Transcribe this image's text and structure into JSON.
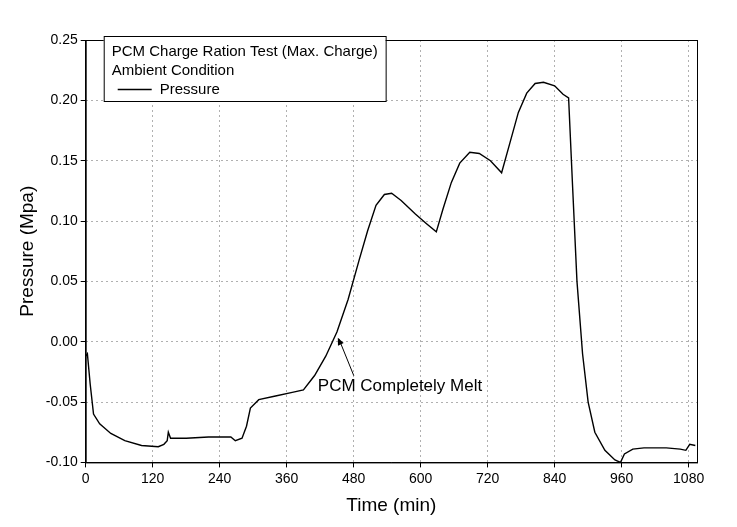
{
  "chart_data": {
    "type": "line",
    "title": [
      "PCM Charge Ration Test (Max. Charge)",
      "Ambient Condition"
    ],
    "x_label": "Time (min)",
    "y_label": "Pressure (Mpa)",
    "x": [
      0,
      3,
      8,
      14,
      25,
      45,
      70,
      100,
      130,
      140,
      146,
      148,
      152,
      180,
      220,
      260,
      268,
      280,
      288,
      295,
      310,
      340,
      370,
      390,
      410,
      430,
      450,
      470,
      490,
      505,
      520,
      535,
      548,
      565,
      590,
      610,
      628,
      640,
      655,
      670,
      688,
      705,
      725,
      745,
      760,
      775,
      790,
      805,
      820,
      840,
      855,
      865,
      872,
      880,
      890,
      900,
      912,
      930,
      948,
      958,
      965,
      980,
      1000,
      1040,
      1065,
      1075,
      1082,
      1092
    ],
    "series": [
      {
        "name": "Pressure",
        "color": "#000000",
        "line_style": "solid",
        "marker": "none",
        "values": [
          -0.012,
          -0.01,
          -0.035,
          -0.06,
          -0.068,
          -0.076,
          -0.082,
          -0.086,
          -0.087,
          -0.085,
          -0.082,
          -0.075,
          -0.08,
          -0.08,
          -0.079,
          -0.079,
          -0.082,
          -0.08,
          -0.07,
          -0.055,
          -0.048,
          -0.045,
          -0.042,
          -0.04,
          -0.028,
          -0.012,
          0.008,
          0.035,
          0.068,
          0.092,
          0.113,
          0.122,
          0.123,
          0.117,
          0.106,
          0.098,
          0.091,
          0.11,
          0.132,
          0.148,
          0.157,
          0.156,
          0.15,
          0.14,
          0.165,
          0.19,
          0.206,
          0.214,
          0.215,
          0.212,
          0.205,
          0.202,
          0.13,
          0.05,
          -0.01,
          -0.05,
          -0.075,
          -0.09,
          -0.098,
          -0.1,
          -0.093,
          -0.089,
          -0.088,
          -0.088,
          -0.089,
          -0.09,
          -0.085,
          -0.086
        ]
      }
    ],
    "xlim": [
      0,
      1095
    ],
    "xticks": [
      0,
      120,
      240,
      360,
      480,
      600,
      720,
      840,
      960,
      1080
    ],
    "ylim": [
      -0.1,
      0.25
    ],
    "yticks": [
      {
        "value": -0.1,
        "label": "-0.10"
      },
      -0.05,
      {
        "value": 0,
        "label": "0.00"
      },
      0.05,
      {
        "value": 0.1,
        "label": "0.10"
      },
      0.15,
      {
        "value": 0.2,
        "label": "0.20"
      },
      0.25
    ],
    "grid": true,
    "legend": "upper left",
    "annotations": [
      {
        "text": "PCM Completely Melt",
        "x": 448,
        "y": 0.005
      }
    ]
  }
}
